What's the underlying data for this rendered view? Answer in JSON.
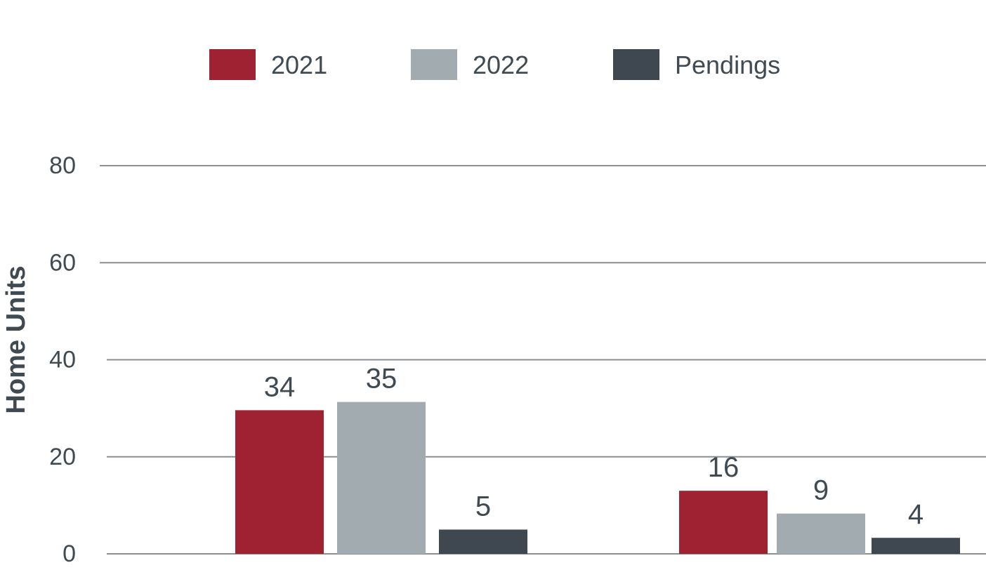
{
  "chart_data": {
    "type": "bar",
    "title": "",
    "xlabel": "",
    "ylabel": "Home Units",
    "categories": [
      "",
      ""
    ],
    "series": [
      {
        "name": "2021",
        "color": "#9e2232",
        "values": [
          34,
          16
        ]
      },
      {
        "name": "2022",
        "color": "#a2abb0",
        "values": [
          35,
          9
        ]
      },
      {
        "name": "Pendings",
        "color": "#3f4850",
        "values": [
          5,
          4
        ]
      }
    ],
    "bar_heights_on_axis": [
      [
        29.6,
        13
      ],
      [
        31.3,
        8.3
      ],
      [
        5,
        3.3
      ]
    ],
    "ylim": [
      0,
      80
    ],
    "yticks": [
      0,
      20,
      40,
      60,
      80
    ],
    "grid": true,
    "legend_position": "top"
  }
}
